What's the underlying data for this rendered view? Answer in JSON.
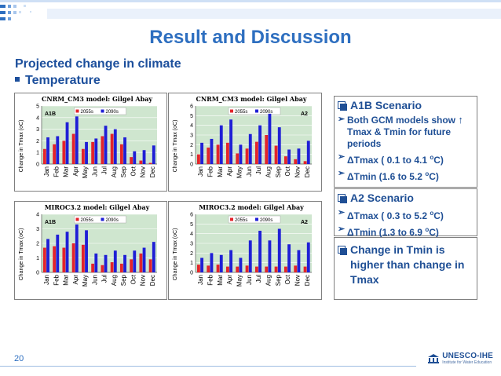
{
  "slide": {
    "title": "Result and Discussion",
    "subtitle": "Projected change in climate",
    "bullet": "Temperature",
    "page_number": "20",
    "logo": {
      "name": "UNESCO-IHE",
      "tagline": "Institute for Water Education"
    },
    "colors": {
      "title": "#2e6fc0",
      "text_dark_blue": "#1f4f95",
      "series_2055": "#e3242b",
      "series_2090": "#1f1fd6",
      "chart_bg": "#cfe6cf"
    }
  },
  "side": {
    "box1": {
      "heading": "A1B Scenario",
      "items": [
        "Both GCM models show",
        "Tmax & Tmin for future periods",
        "ΔTmax ( 0.1 to 4.1 ",
        "C)",
        "ΔTmin (1.6 to 5.2 ",
        "C)"
      ]
    },
    "box2": {
      "heading": "A2 Scenario",
      "items": [
        "ΔTmax ( 0.3 to 5.2 ",
        "C)",
        "ΔTmin (1.3 to 6.9 ",
        "C)"
      ]
    },
    "box3": {
      "heading": "Change in Tmin is higher than change in Tmax"
    },
    "superscript": "o",
    "up_arrow": "↑"
  },
  "chart_data": [
    {
      "type": "bar",
      "title": "CNRM_CM3 model: Gilgel Abay",
      "scenario": "A1B",
      "ylabel": "Change in Tmax (oC)",
      "ylim": [
        0,
        5
      ],
      "yticks": [
        0,
        1,
        2,
        3,
        4,
        5
      ],
      "legend_position": "top",
      "categories": [
        "Jan",
        "Feb",
        "Mar",
        "Apr",
        "May",
        "Jun",
        "Jul",
        "Aug",
        "Sep",
        "Oct",
        "Nov",
        "Dec"
      ],
      "series": [
        {
          "name": "2055s",
          "values": [
            1.3,
            1.7,
            2.0,
            2.6,
            1.3,
            1.9,
            2.4,
            2.6,
            1.7,
            0.6,
            0.3,
            0.1
          ]
        },
        {
          "name": "2090s",
          "values": [
            2.3,
            2.4,
            3.6,
            4.1,
            1.9,
            2.2,
            3.3,
            3.0,
            2.3,
            1.1,
            1.2,
            1.6
          ]
        }
      ]
    },
    {
      "type": "bar",
      "title": "CNRM_CM3 model: Gilgel Abay",
      "scenario": "A2",
      "ylabel": "Change in Tmax (oC)",
      "ylim": [
        0,
        6
      ],
      "yticks": [
        0,
        1,
        2,
        3,
        4,
        5,
        6
      ],
      "legend_position": "top",
      "categories": [
        "Jan",
        "Feb",
        "Mar",
        "Apr",
        "May",
        "Jun",
        "Jul",
        "Aug",
        "Sep",
        "Oct",
        "Nov",
        "Dec"
      ],
      "series": [
        {
          "name": "2055s",
          "values": [
            1.0,
            1.7,
            2.0,
            2.2,
            1.1,
            1.6,
            2.3,
            3.0,
            1.9,
            0.8,
            0.5,
            0.3
          ]
        },
        {
          "name": "2090s",
          "values": [
            2.2,
            2.6,
            4.0,
            4.6,
            2.0,
            3.1,
            4.0,
            5.2,
            3.8,
            1.5,
            1.6,
            2.4
          ]
        }
      ]
    },
    {
      "type": "bar",
      "title": "MIROC3.2 model: Gilgel Abay",
      "scenario": "A1B",
      "ylabel": "Change in Tmax (oC)",
      "ylim": [
        0,
        4
      ],
      "yticks": [
        0,
        1,
        2,
        3,
        4
      ],
      "legend_position": "top",
      "categories": [
        "Jan",
        "Feb",
        "Mar",
        "Apr",
        "May",
        "Jun",
        "Jul",
        "Aug",
        "Sep",
        "Oct",
        "Nov",
        "Dec"
      ],
      "series": [
        {
          "name": "2055s",
          "values": [
            1.7,
            1.8,
            1.7,
            2.0,
            1.9,
            0.6,
            0.5,
            0.7,
            0.6,
            0.9,
            1.3,
            0.9
          ]
        },
        {
          "name": "2090s",
          "values": [
            2.3,
            2.6,
            2.8,
            3.3,
            2.9,
            1.3,
            1.2,
            1.5,
            1.2,
            1.5,
            1.7,
            2.1
          ]
        }
      ]
    },
    {
      "type": "bar",
      "title": "MIROC3.2 model: Gilgel Abay",
      "scenario": "A2",
      "ylabel": "Change in Tmax (oC)",
      "ylim": [
        0,
        6
      ],
      "yticks": [
        0,
        1,
        2,
        3,
        4,
        5,
        6
      ],
      "legend_position": "top",
      "categories": [
        "Jan",
        "Feb",
        "Mar",
        "Apr",
        "May",
        "Jun",
        "Jul",
        "Aug",
        "Sep",
        "Oct",
        "Nov",
        "Dec"
      ],
      "series": [
        {
          "name": "2055s",
          "values": [
            0.8,
            0.7,
            0.8,
            0.6,
            0.6,
            0.7,
            0.6,
            0.6,
            0.6,
            0.6,
            0.7,
            0.6
          ]
        },
        {
          "name": "2090s",
          "values": [
            1.5,
            2.0,
            1.8,
            2.3,
            1.5,
            3.3,
            4.3,
            3.3,
            4.5,
            2.9,
            2.3,
            3.1
          ]
        }
      ]
    }
  ]
}
